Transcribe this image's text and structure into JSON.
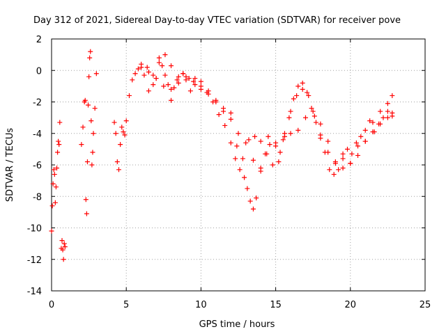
{
  "chart_data": {
    "type": "scatter",
    "title": "Day 312 of 2021, Sidereal Day-to-day VTEC variation (SDTVAR) for receiver pove",
    "xlabel": "GPS time / hours",
    "ylabel": "SDTVAR / TECUs",
    "xlim": [
      0,
      25
    ],
    "ylim": [
      -14,
      2
    ],
    "xticks": [
      0,
      5,
      10,
      15,
      20,
      25
    ],
    "yticks": [
      -14,
      -12,
      -10,
      -8,
      -6,
      -4,
      -2,
      0,
      2
    ],
    "grid": true,
    "marker": "+",
    "color": "#ff0000",
    "series": [
      {
        "name": "SDTVAR",
        "x": [
          0.0,
          0.05,
          0.1,
          0.15,
          0.2,
          0.25,
          0.3,
          0.35,
          0.4,
          0.45,
          0.5,
          0.55,
          0.65,
          0.7,
          0.75,
          0.8,
          0.85,
          0.9,
          2.0,
          2.1,
          2.2,
          2.25,
          2.3,
          2.35,
          2.4,
          2.45,
          2.5,
          2.55,
          2.6,
          2.65,
          2.7,
          2.75,
          2.8,
          2.9,
          3.0,
          4.2,
          4.3,
          4.4,
          4.5,
          4.6,
          4.7,
          4.8,
          4.9,
          5.0,
          5.2,
          5.4,
          5.6,
          5.8,
          6.0,
          6.2,
          6.5,
          6.8,
          7.0,
          7.2,
          7.4,
          7.6,
          7.8,
          8.0,
          8.2,
          8.5,
          8.8,
          9.0,
          9.3,
          9.6,
          10.0,
          10.4,
          10.8,
          11.2,
          11.6,
          12.0,
          12.3,
          12.6,
          12.9,
          13.1,
          13.3,
          13.5,
          13.7,
          14.0,
          14.3,
          14.6,
          15.0,
          15.3,
          15.6,
          15.9,
          16.2,
          16.5,
          16.8,
          17.1,
          17.4,
          17.7,
          18.0,
          18.3,
          18.6,
          18.9,
          19.2,
          19.5,
          19.8,
          20.1,
          20.4,
          20.7,
          21.0,
          21.3,
          21.6,
          21.9,
          22.2,
          22.5,
          22.8,
          6.0,
          6.4,
          6.8,
          7.2,
          7.6,
          8.0,
          8.4,
          8.8,
          9.2,
          9.6,
          10.0,
          10.5,
          11.0,
          11.5,
          12.0,
          12.4,
          12.8,
          13.2,
          13.6,
          14.0,
          14.4,
          14.8,
          15.2,
          15.6,
          16.0,
          16.4,
          16.8,
          17.2,
          17.6,
          18.0,
          18.5,
          19.0,
          19.5,
          20.0,
          20.5,
          21.0,
          21.5,
          22.0,
          22.5,
          22.8,
          6.5,
          7.0,
          7.5,
          8.0,
          8.5,
          9.0,
          9.5,
          10.0,
          10.5,
          11.0,
          11.5,
          12.0,
          12.5,
          13.0,
          13.5,
          14.0,
          14.5,
          15.0,
          15.5,
          16.0,
          16.5,
          17.0,
          17.5,
          18.0,
          18.5,
          19.0,
          19.5,
          20.0,
          20.5,
          21.0,
          21.5,
          22.0,
          22.5,
          22.8
        ],
        "y": [
          -10.2,
          -8.6,
          -7.2,
          -6.3,
          -6.6,
          -8.4,
          -7.4,
          -6.2,
          -5.2,
          -4.5,
          -4.7,
          -3.3,
          -11.3,
          -10.8,
          -11.4,
          -12.0,
          -11.0,
          -11.2,
          -4.7,
          -3.6,
          -2.0,
          -1.9,
          -8.2,
          -9.1,
          -5.8,
          -2.2,
          -0.4,
          0.8,
          1.2,
          -3.2,
          -6.0,
          -5.2,
          -4.0,
          -2.4,
          -0.2,
          -3.3,
          -4.0,
          -5.8,
          -6.3,
          -4.7,
          -3.6,
          -3.9,
          -4.1,
          -3.2,
          -1.6,
          -0.6,
          -0.2,
          0.1,
          0.2,
          -0.3,
          -1.3,
          -0.9,
          -0.5,
          0.5,
          0.3,
          -0.3,
          -0.9,
          -1.9,
          -1.1,
          -0.4,
          -0.2,
          -0.6,
          -1.3,
          -0.5,
          -1.2,
          -1.4,
          -2.0,
          -2.8,
          -3.5,
          -4.6,
          -5.6,
          -6.3,
          -6.8,
          -7.5,
          -8.3,
          -8.8,
          -8.1,
          -6.4,
          -5.3,
          -4.7,
          -4.6,
          -5.2,
          -4.0,
          -3.0,
          -1.8,
          -1.0,
          -0.8,
          -1.4,
          -2.4,
          -3.3,
          -4.3,
          -5.2,
          -6.3,
          -6.6,
          -6.3,
          -5.6,
          -5.0,
          -5.3,
          -4.6,
          -4.2,
          -3.8,
          -3.2,
          -3.9,
          -3.4,
          -3.0,
          -2.6,
          -2.7,
          0.4,
          0.2,
          -0.3,
          0.8,
          1.0,
          0.3,
          -0.6,
          -0.2,
          -0.5,
          -0.9,
          -0.7,
          -1.3,
          -1.9,
          -2.4,
          -2.7,
          -4.8,
          -5.6,
          -4.4,
          -4.2,
          -4.5,
          -5.3,
          -6.0,
          -5.8,
          -4.2,
          -2.6,
          -1.6,
          -1.2,
          -1.6,
          -2.9,
          -4.1,
          -5.2,
          -5.9,
          -5.3,
          -5.9,
          -5.4,
          -4.5,
          -3.3,
          -2.6,
          -2.1,
          -1.6,
          -0.1,
          -0.5,
          -1.0,
          -1.2,
          -0.8,
          -0.4,
          -0.7,
          -1.0,
          -1.5,
          -2.0,
          -2.6,
          -3.1,
          -4.0,
          -4.6,
          -5.7,
          -6.2,
          -4.2,
          -4.8,
          -4.4,
          -4.0,
          -3.8,
          -3.0,
          -2.6,
          -3.4,
          -4.5,
          -5.8,
          -6.2,
          -5.9,
          -4.8,
          -4.5,
          -3.9,
          -3.4,
          -3.0,
          -2.9
        ]
      }
    ]
  }
}
